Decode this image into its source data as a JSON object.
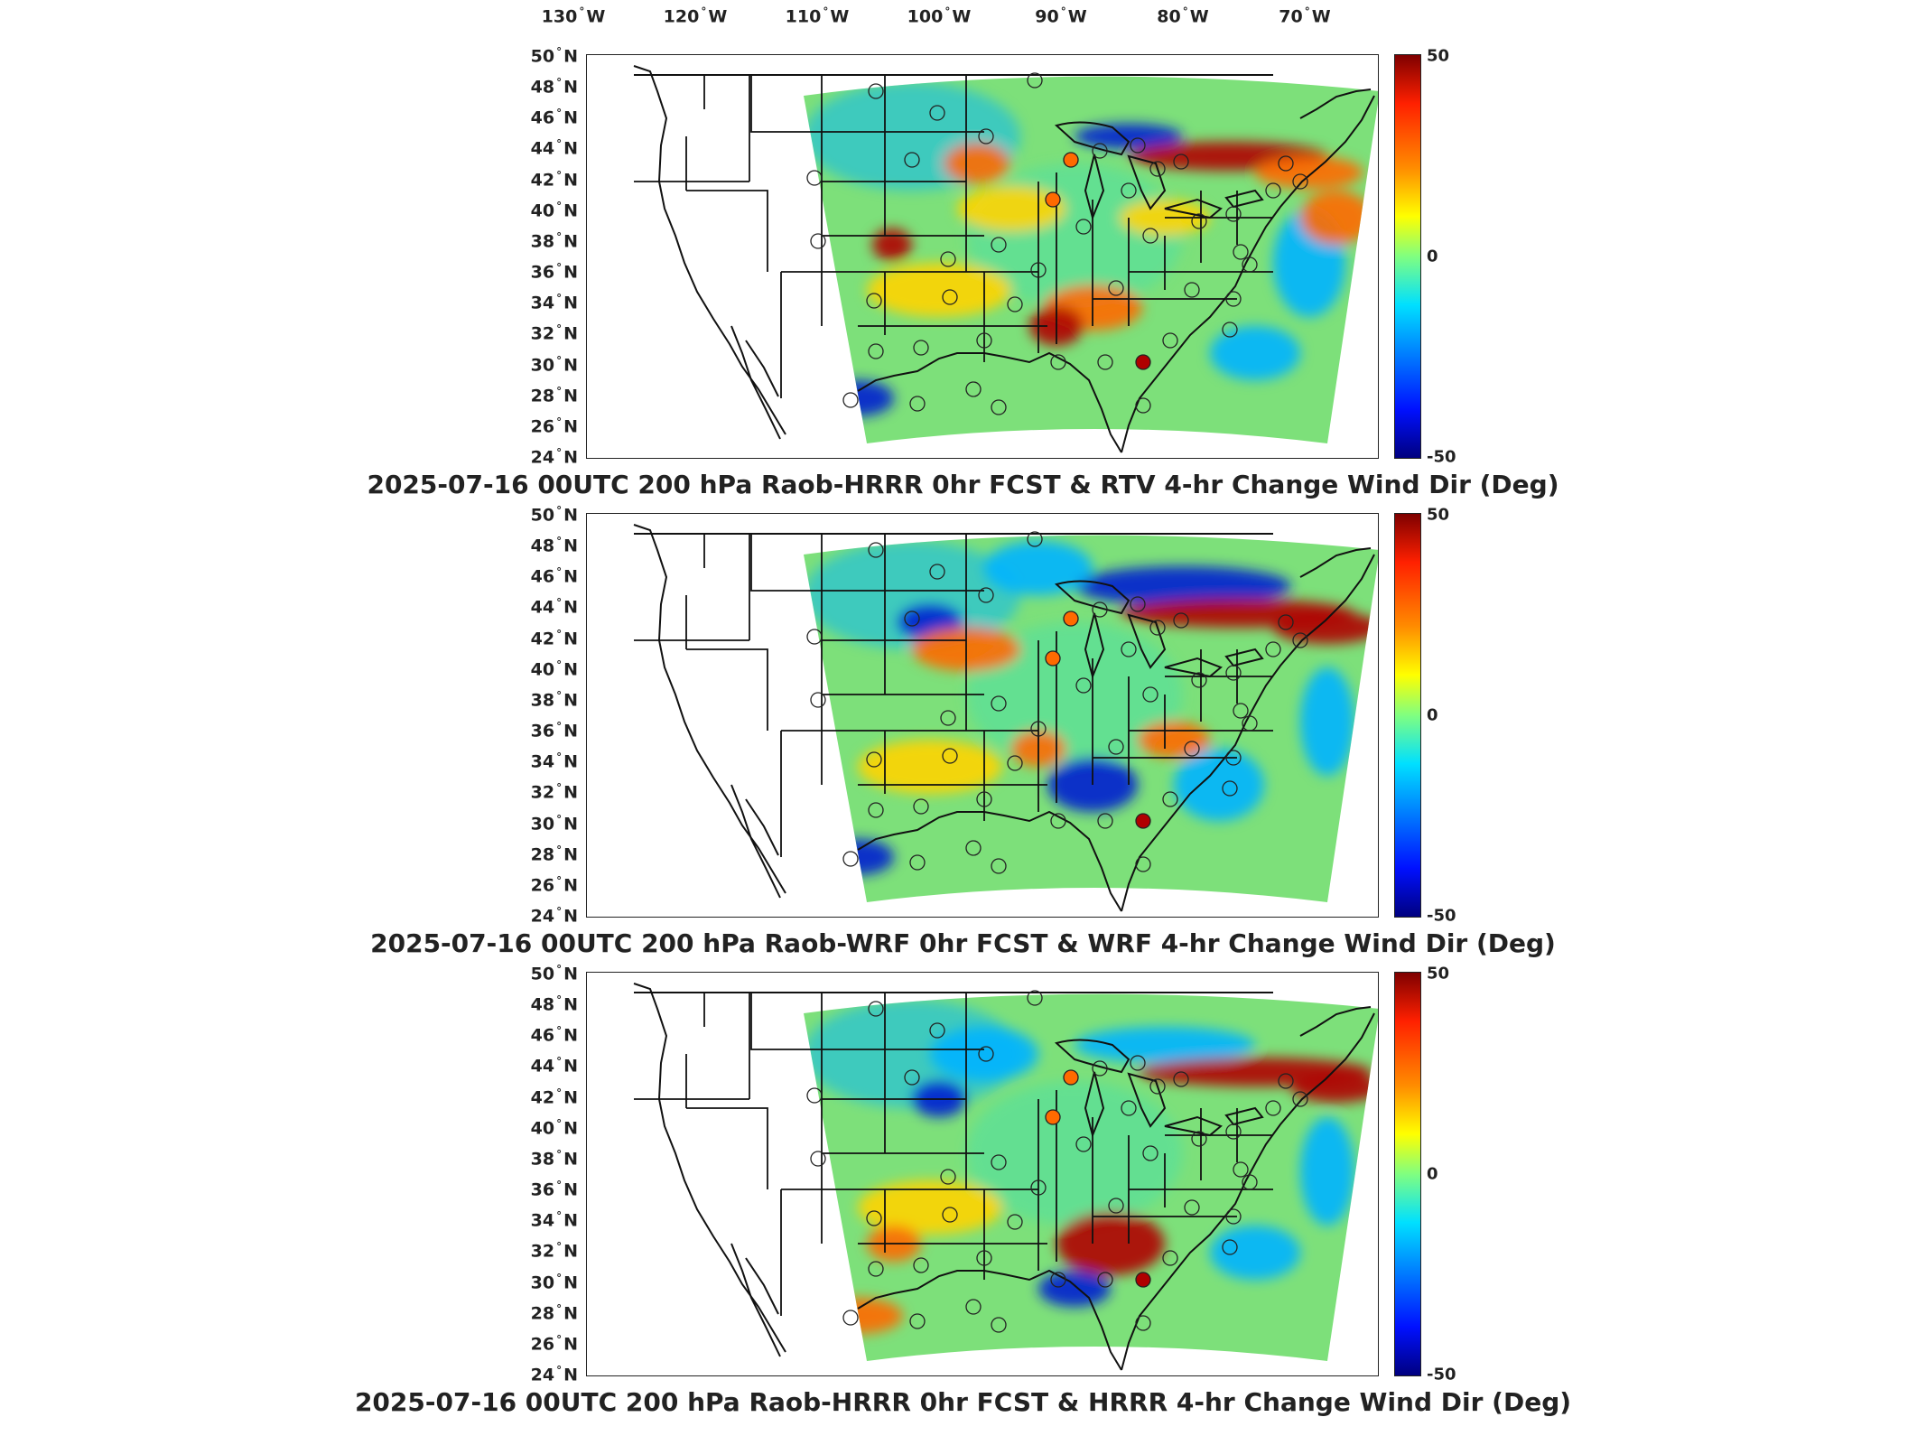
{
  "longitude_labels": [
    {
      "value": "130",
      "hemi": "W"
    },
    {
      "value": "120",
      "hemi": "W"
    },
    {
      "value": "110",
      "hemi": "W"
    },
    {
      "value": "100",
      "hemi": "W"
    },
    {
      "value": "90",
      "hemi": "W"
    },
    {
      "value": "80",
      "hemi": "W"
    },
    {
      "value": "70",
      "hemi": "W"
    }
  ],
  "latitude_labels": [
    {
      "value": "50",
      "hemi": "N"
    },
    {
      "value": "48",
      "hemi": "N"
    },
    {
      "value": "46",
      "hemi": "N"
    },
    {
      "value": "44",
      "hemi": "N"
    },
    {
      "value": "42",
      "hemi": "N"
    },
    {
      "value": "40",
      "hemi": "N"
    },
    {
      "value": "38",
      "hemi": "N"
    },
    {
      "value": "36",
      "hemi": "N"
    },
    {
      "value": "34",
      "hemi": "N"
    },
    {
      "value": "32",
      "hemi": "N"
    },
    {
      "value": "30",
      "hemi": "N"
    },
    {
      "value": "28",
      "hemi": "N"
    },
    {
      "value": "26",
      "hemi": "N"
    },
    {
      "value": "24",
      "hemi": "N"
    }
  ],
  "degree_symbol": "°",
  "colorbar": {
    "max": "50",
    "mid": "0",
    "min": "-50"
  },
  "panels": [
    {
      "title": "2025-07-16 00UTC 200 hPa Raob-HRRR 0hr FCST & RTV 4-hr Change Wind Dir (Deg)"
    },
    {
      "title": "2025-07-16 00UTC 200 hPa Raob-WRF 0hr FCST & WRF 4-hr Change Wind Dir (Deg)"
    },
    {
      "title": "2025-07-16 00UTC 200 hPa Raob-HRRR 0hr FCST & HRRR 4-hr Change Wind Dir (Deg)"
    }
  ],
  "colors": {
    "field_base": "#7de07a",
    "positive_strong": "#b00000",
    "positive": "#ff6a00",
    "warm": "#ffd400",
    "neutral": "#52e0a0",
    "negative": "#00b4ff",
    "negative_strong": "#0020d0"
  }
}
